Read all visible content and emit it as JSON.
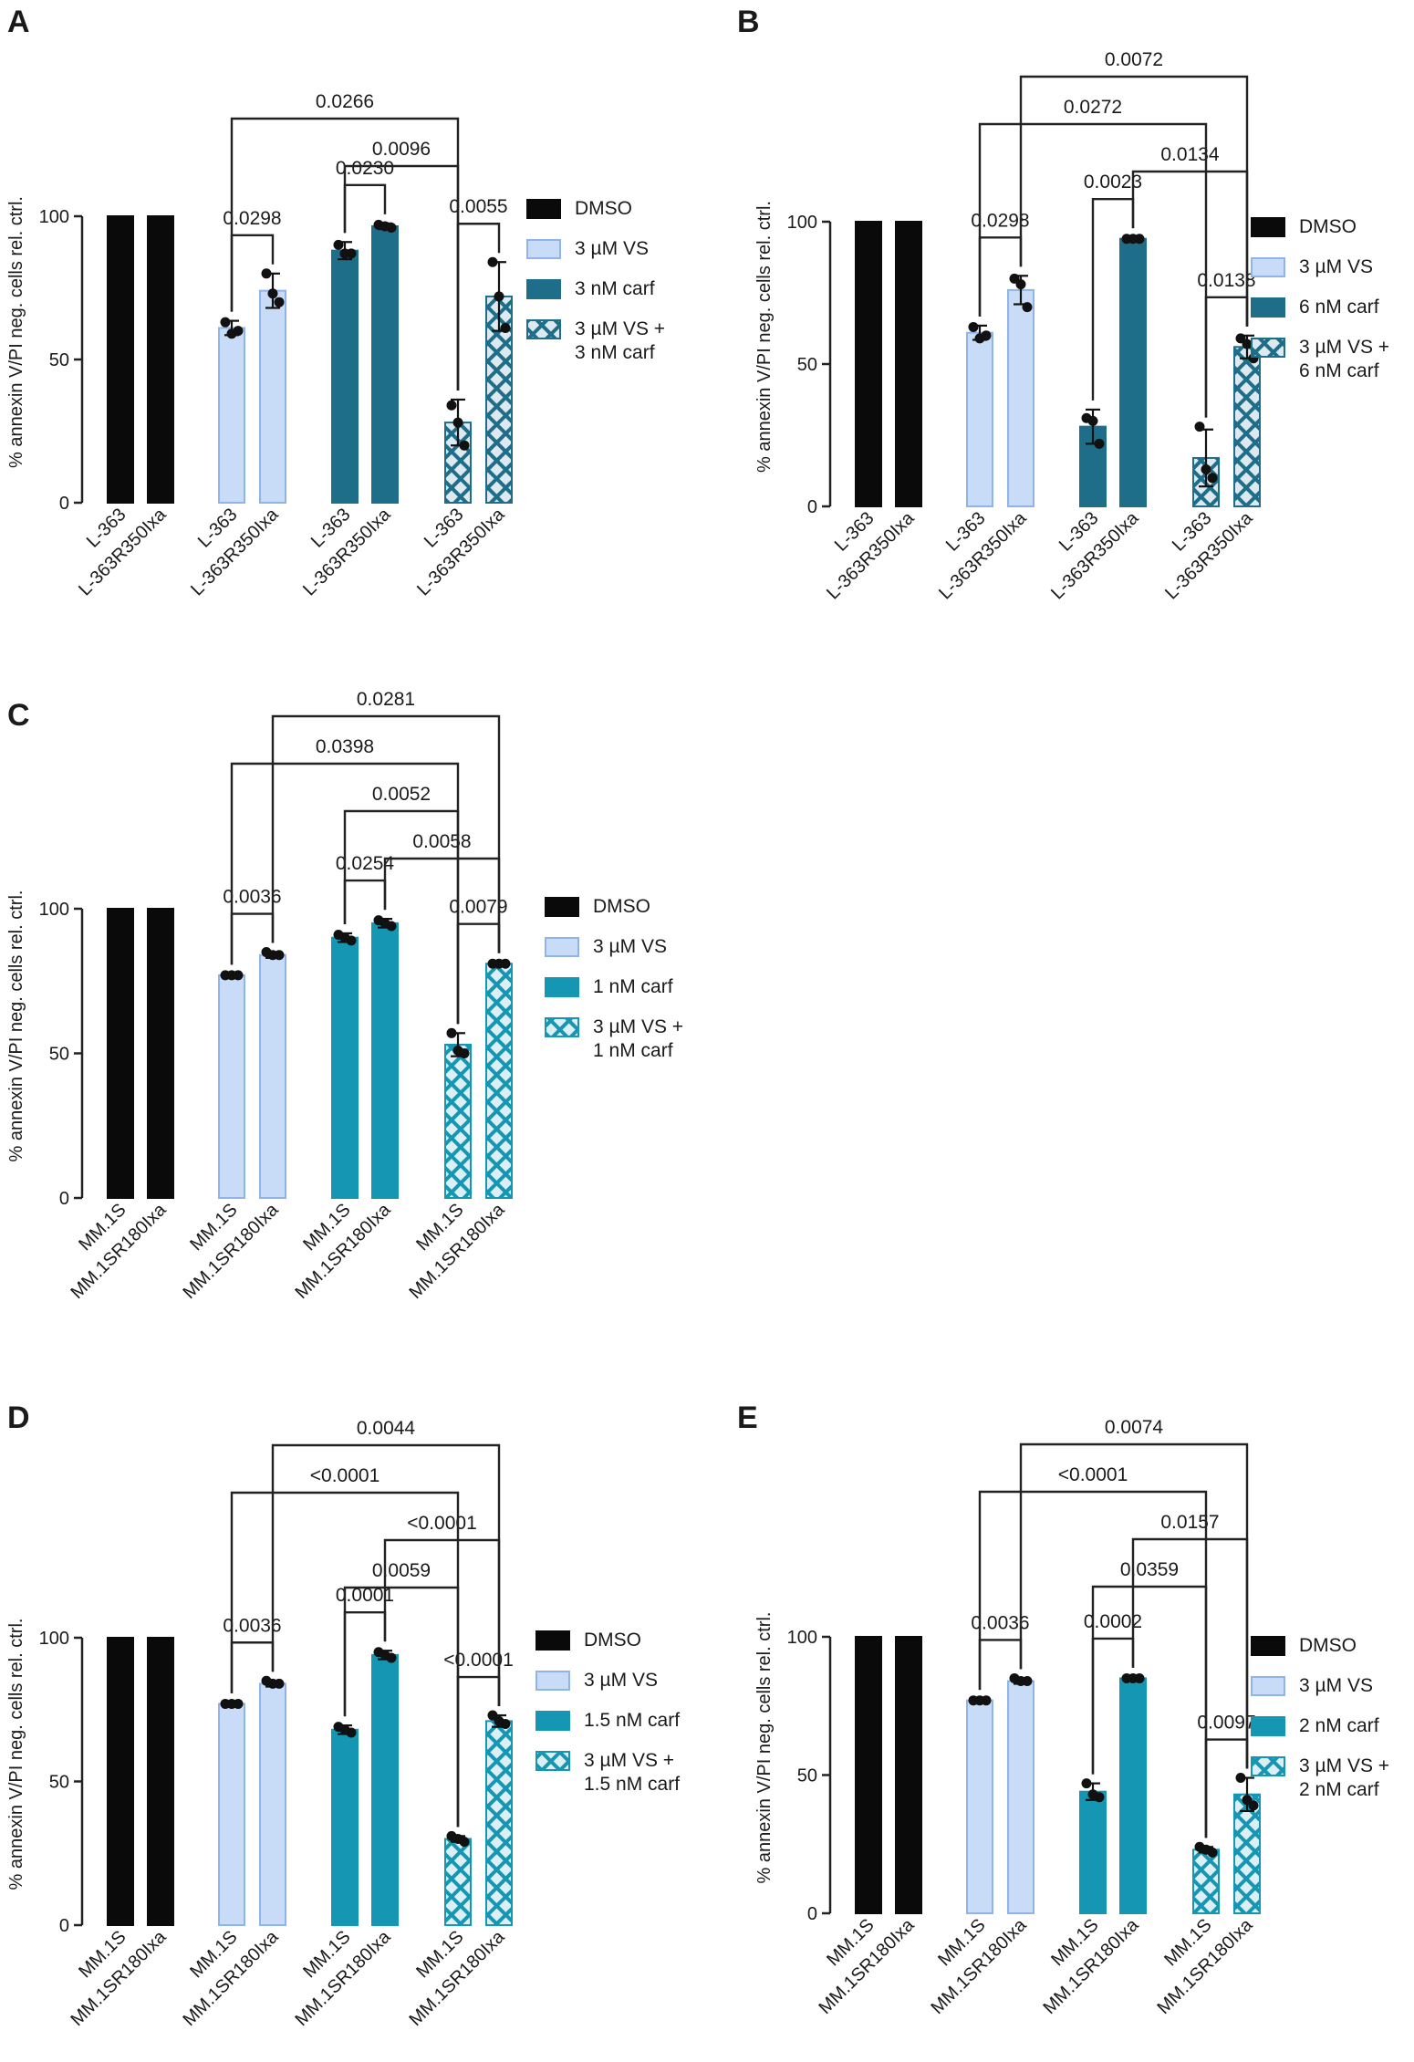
{
  "figure": {
    "colors": {
      "dmso": "#0a0a0a",
      "vs_fill": "#c8dcf7",
      "vs_edge": "#8fb4ea",
      "carf_dark": "#1e6e8a",
      "carf": "#1596b3",
      "point": "#111111"
    }
  },
  "chart_data": [
    {
      "panel": "A",
      "type": "bar",
      "ylabel": "% annexin V/PI neg. cells rel. ctrl.",
      "ylim": [
        0,
        100
      ],
      "yticks": [
        0,
        50,
        100
      ],
      "categories": [
        "L-363",
        "L-363R350Ixa"
      ],
      "series": [
        {
          "name": "DMSO",
          "legend": "DMSO",
          "style": "dmso",
          "values": [
            100,
            100
          ],
          "errors": [
            0,
            0
          ],
          "points": [
            [],
            []
          ]
        },
        {
          "name": "3 µM VS",
          "legend": "3 µM VS",
          "style": "vs",
          "values": [
            61,
            74
          ],
          "errors": [
            2.5,
            6
          ],
          "points": [
            [
              63,
              60,
              59
            ],
            [
              80,
              70,
              73
            ]
          ]
        },
        {
          "name": "3 nM carf",
          "legend": "3 nM carf",
          "style": "carf_dark",
          "values": [
            88,
            96.5
          ],
          "errors": [
            3,
            1
          ],
          "points": [
            [
              90,
              87,
              87
            ],
            [
              97,
              96,
              96.5
            ]
          ]
        },
        {
          "name": "3 µM VS + 3 nM carf",
          "legend": "3 µM VS +|3 nM carf",
          "style": "carf_dark_hatch",
          "values": [
            28,
            72
          ],
          "errors": [
            8,
            12
          ],
          "points": [
            [
              34,
              20,
              28
            ],
            [
              84,
              61,
              72
            ]
          ]
        }
      ],
      "comparisons": [
        {
          "p": "0.0298",
          "from": "1.0",
          "to": "1.1"
        },
        {
          "p": "0.0230",
          "from": "2.0",
          "to": "2.1"
        },
        {
          "p": "0.0055",
          "from": "3.0",
          "to": "3.1"
        },
        {
          "p": "0.0096",
          "from": "2.0",
          "to": "3.0"
        },
        {
          "p": "0.0266",
          "from": "1.0",
          "to": "3.0"
        }
      ]
    },
    {
      "panel": "B",
      "type": "bar",
      "ylabel": "% annexin V/PI neg. cells rel. ctrl.",
      "ylim": [
        0,
        100
      ],
      "yticks": [
        0,
        50,
        100
      ],
      "categories": [
        "L-363",
        "L-363R350Ixa"
      ],
      "series": [
        {
          "name": "DMSO",
          "legend": "DMSO",
          "style": "dmso",
          "values": [
            100,
            100
          ],
          "errors": [
            0,
            0
          ],
          "points": [
            [],
            []
          ]
        },
        {
          "name": "3 µM VS",
          "legend": "3 µM VS",
          "style": "vs",
          "values": [
            61,
            76
          ],
          "errors": [
            2.5,
            5
          ],
          "points": [
            [
              63,
              60,
              59
            ],
            [
              80,
              70,
              78
            ]
          ]
        },
        {
          "name": "6 nM carf",
          "legend": "6 nM carf",
          "style": "carf_dark",
          "values": [
            28,
            94
          ],
          "errors": [
            6,
            0.5
          ],
          "points": [
            [
              31,
              22,
              30
            ],
            [
              94,
              94,
              94
            ]
          ]
        },
        {
          "name": "3 µM VS + 6 nM carf",
          "legend": "3 µM VS +|6 nM carf",
          "style": "carf_dark_hatch",
          "values": [
            17,
            56
          ],
          "errors": [
            10,
            4
          ],
          "points": [
            [
              28,
              10,
              13
            ],
            [
              59,
              52,
              57
            ]
          ]
        }
      ],
      "comparisons": [
        {
          "p": "0.0298",
          "from": "1.0",
          "to": "1.1"
        },
        {
          "p": "0.0023",
          "from": "2.0",
          "to": "2.1"
        },
        {
          "p": "0.0138",
          "from": "3.0",
          "to": "3.1"
        },
        {
          "p": "0.0134",
          "from": "2.1",
          "to": "3.1"
        },
        {
          "p": "0.0272",
          "from": "1.0",
          "to": "3.0"
        },
        {
          "p": "0.0072",
          "from": "1.1",
          "to": "3.1"
        }
      ]
    },
    {
      "panel": "C",
      "type": "bar",
      "ylabel": "% annexin V/PI neg. cells rel. ctrl.",
      "ylim": [
        0,
        100
      ],
      "yticks": [
        0,
        50,
        100
      ],
      "categories": [
        "MM.1S",
        "MM.1SR180Ixa"
      ],
      "series": [
        {
          "name": "DMSO",
          "legend": "DMSO",
          "style": "dmso",
          "values": [
            100,
            100
          ],
          "errors": [
            0,
            0
          ],
          "points": [
            [],
            []
          ]
        },
        {
          "name": "3 µM VS",
          "legend": "3 µM VS",
          "style": "vs",
          "values": [
            77,
            84
          ],
          "errors": [
            0.5,
            1
          ],
          "points": [
            [
              77,
              77,
              77
            ],
            [
              85,
              84,
              84
            ]
          ]
        },
        {
          "name": "1 nM carf",
          "legend": "1 nM carf",
          "style": "carf",
          "values": [
            90,
            95
          ],
          "errors": [
            1.5,
            1.5
          ],
          "points": [
            [
              91,
              89,
              90
            ],
            [
              96,
              94,
              95
            ]
          ]
        },
        {
          "name": "3 µM VS + 1 nM carf",
          "legend": "3 µM VS +|1 nM carf",
          "style": "carf_hatch",
          "values": [
            53,
            81
          ],
          "errors": [
            4,
            0.5
          ],
          "points": [
            [
              57,
              50,
              51
            ],
            [
              81,
              81,
              81
            ]
          ]
        }
      ],
      "comparisons": [
        {
          "p": "0.0036",
          "from": "1.0",
          "to": "1.1"
        },
        {
          "p": "0.0254",
          "from": "2.0",
          "to": "2.1"
        },
        {
          "p": "0.0079",
          "from": "3.0",
          "to": "3.1"
        },
        {
          "p": "0.0058",
          "from": "2.1",
          "to": "3.1"
        },
        {
          "p": "0.0052",
          "from": "2.0",
          "to": "3.0"
        },
        {
          "p": "0.0398",
          "from": "1.0",
          "to": "3.0"
        },
        {
          "p": "0.0281",
          "from": "1.1",
          "to": "3.1"
        }
      ]
    },
    {
      "panel": "D",
      "type": "bar",
      "ylabel": "% annexin V/PI neg. cells rel. ctrl.",
      "ylim": [
        0,
        100
      ],
      "yticks": [
        0,
        50,
        100
      ],
      "categories": [
        "MM.1S",
        "MM.1SR180Ixa"
      ],
      "series": [
        {
          "name": "DMSO",
          "legend": "DMSO",
          "style": "dmso",
          "values": [
            100,
            100
          ],
          "errors": [
            0,
            0
          ],
          "points": [
            [],
            []
          ]
        },
        {
          "name": "3 µM VS",
          "legend": "3 µM VS",
          "style": "vs",
          "values": [
            77,
            84
          ],
          "errors": [
            0.5,
            1
          ],
          "points": [
            [
              77,
              77,
              77
            ],
            [
              85,
              84,
              84
            ]
          ]
        },
        {
          "name": "1.5 nM carf",
          "legend": "1.5 nM carf",
          "style": "carf",
          "values": [
            68,
            94
          ],
          "errors": [
            1.5,
            1.5
          ],
          "points": [
            [
              69,
              67,
              68
            ],
            [
              95,
              93,
              94
            ]
          ]
        },
        {
          "name": "3 µM VS + 1.5 nM carf",
          "legend": "3 µM VS +|1.5 nM carf",
          "style": "carf_hatch",
          "values": [
            30,
            71
          ],
          "errors": [
            1,
            2
          ],
          "points": [
            [
              31,
              29,
              30
            ],
            [
              73,
              70,
              71
            ]
          ]
        }
      ],
      "comparisons": [
        {
          "p": "0.0036",
          "from": "1.0",
          "to": "1.1"
        },
        {
          "p": "0.0001",
          "from": "2.0",
          "to": "2.1"
        },
        {
          "p": "<0.0001",
          "from": "3.0",
          "to": "3.1"
        },
        {
          "p": "0.0059",
          "from": "2.0",
          "to": "3.0"
        },
        {
          "p": "<0.0001",
          "from": "2.1",
          "to": "3.1"
        },
        {
          "p": "<0.0001",
          "from": "1.0",
          "to": "3.0"
        },
        {
          "p": "0.0044",
          "from": "1.1",
          "to": "3.1"
        }
      ]
    },
    {
      "panel": "E",
      "type": "bar",
      "ylabel": "% annexin V/PI neg. cells rel. ctrl.",
      "ylim": [
        0,
        100
      ],
      "yticks": [
        0,
        50,
        100
      ],
      "categories": [
        "MM.1S",
        "MM.1SR180Ixa"
      ],
      "series": [
        {
          "name": "DMSO",
          "legend": "DMSO",
          "style": "dmso",
          "values": [
            100,
            100
          ],
          "errors": [
            0,
            0
          ],
          "points": [
            [],
            []
          ]
        },
        {
          "name": "3 µM VS",
          "legend": "3 µM VS",
          "style": "vs",
          "values": [
            77,
            84
          ],
          "errors": [
            0.5,
            1
          ],
          "points": [
            [
              77,
              77,
              77
            ],
            [
              85,
              84,
              84
            ]
          ]
        },
        {
          "name": "2 nM carf",
          "legend": "2 nM carf",
          "style": "carf",
          "values": [
            44,
            85
          ],
          "errors": [
            3,
            0.5
          ],
          "points": [
            [
              47,
              42,
              43
            ],
            [
              85,
              85,
              85
            ]
          ]
        },
        {
          "name": "3 µM VS + 2 nM carf",
          "legend": "3 µM VS +|2 nM carf",
          "style": "carf_hatch",
          "values": [
            23,
            43
          ],
          "errors": [
            1,
            6
          ],
          "points": [
            [
              24,
              22,
              23
            ],
            [
              49,
              39,
              41
            ]
          ]
        }
      ],
      "comparisons": [
        {
          "p": "0.0036",
          "from": "1.0",
          "to": "1.1"
        },
        {
          "p": "0.0002",
          "from": "2.0",
          "to": "2.1"
        },
        {
          "p": "0.0097",
          "from": "3.0",
          "to": "3.1"
        },
        {
          "p": "0.0359",
          "from": "2.0",
          "to": "3.0"
        },
        {
          "p": "0.0157",
          "from": "2.1",
          "to": "3.1"
        },
        {
          "p": "<0.0001",
          "from": "1.0",
          "to": "3.0"
        },
        {
          "p": "0.0074",
          "from": "1.1",
          "to": "3.1"
        }
      ]
    }
  ]
}
